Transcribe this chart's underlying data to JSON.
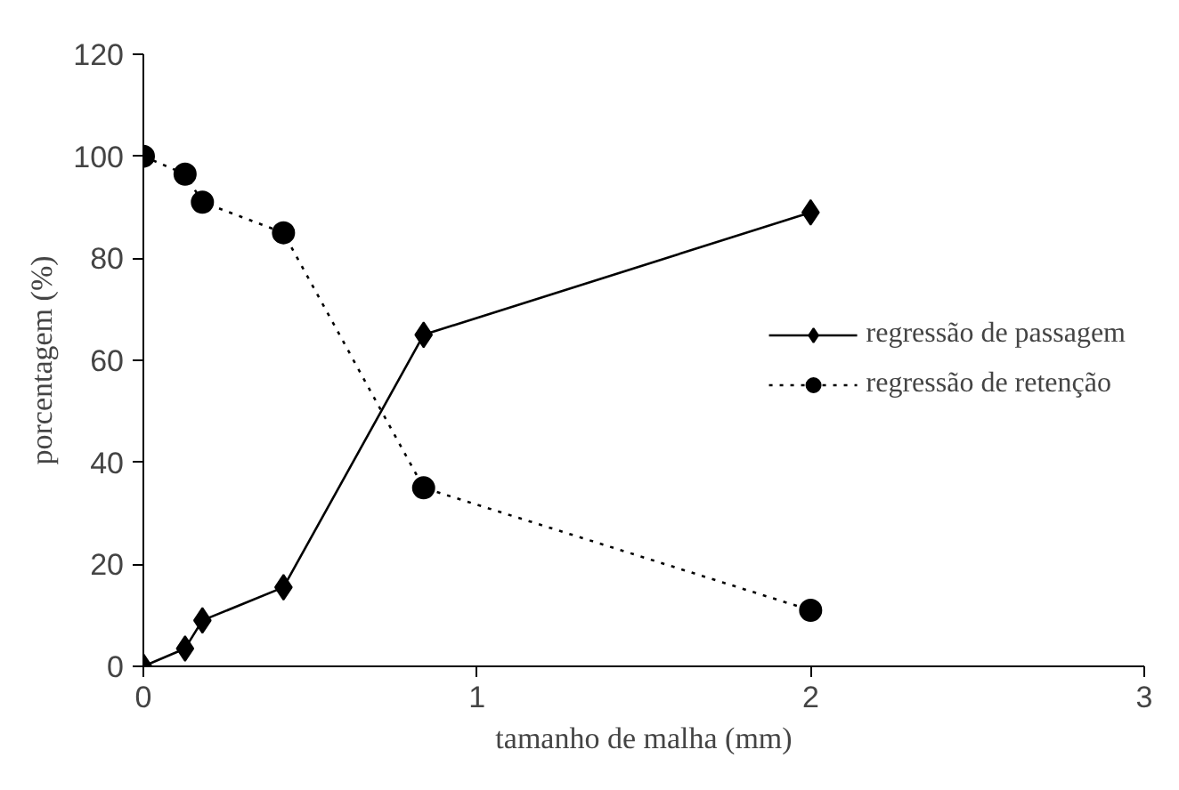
{
  "chart_data": {
    "type": "line",
    "xlabel": "tamanho de malha (mm)",
    "ylabel": "porcentagem (%)",
    "xlim": [
      0,
      3
    ],
    "xticks": [
      0,
      1,
      2,
      3
    ],
    "ylim": [
      0,
      120
    ],
    "yticks": [
      0,
      20,
      40,
      60,
      80,
      100,
      120
    ],
    "grid": false,
    "legend": "right",
    "series": [
      {
        "name": "regressão de passagem",
        "color": "#000000",
        "marker": "diamond",
        "line_style": "solid",
        "x": [
          0,
          0.125,
          0.177,
          0.42,
          0.84,
          2
        ],
        "values": [
          0,
          3.5,
          9,
          15.5,
          65,
          89
        ]
      },
      {
        "name": "regressão de retenção",
        "color": "#000000",
        "marker": "circle",
        "line_style": "dotted",
        "x": [
          0,
          0.125,
          0.177,
          0.42,
          0.84,
          2
        ],
        "values": [
          100,
          96.5,
          91,
          85,
          35,
          11
        ]
      }
    ]
  }
}
